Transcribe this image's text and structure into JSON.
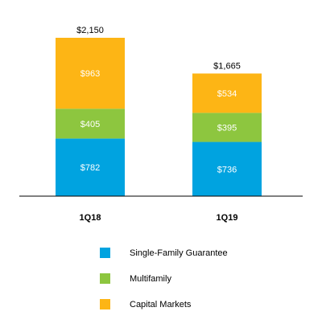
{
  "chart_data": {
    "type": "bar",
    "stacked": true,
    "categories": [
      "1Q18",
      "1Q19"
    ],
    "series": [
      {
        "name": "Single-Family Guarantee",
        "color": "#00a3e0",
        "values": [
          782,
          736
        ],
        "labels": [
          "$782",
          "$736"
        ]
      },
      {
        "name": "Multifamily",
        "color": "#8dc63f",
        "values": [
          405,
          395
        ],
        "labels": [
          "$405",
          "$395"
        ]
      },
      {
        "name": "Capital Markets",
        "color": "#fdb515",
        "values": [
          963,
          534
        ],
        "labels": [
          "$963",
          "$534"
        ]
      }
    ],
    "totals": [
      2150,
      1665
    ],
    "total_labels": [
      "$2,150",
      "$1,665"
    ],
    "title": "",
    "xlabel": "",
    "ylabel": "",
    "ylim": [
      0,
      2150
    ],
    "grid": false,
    "legend": "bottom"
  }
}
